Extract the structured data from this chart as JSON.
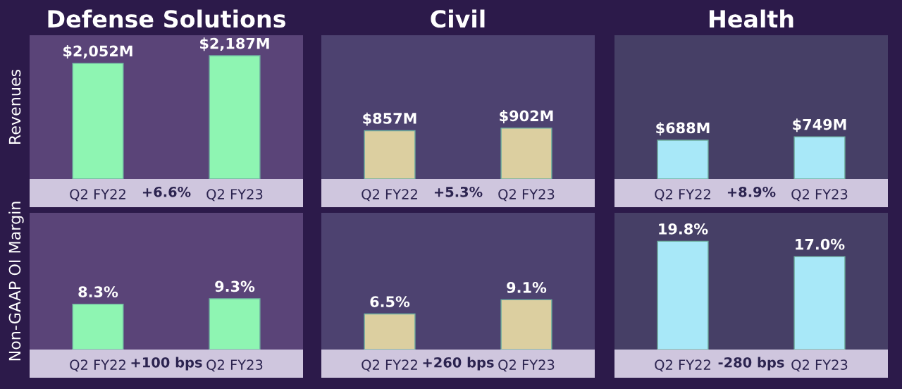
{
  "chart_data": [
    {
      "type": "bar",
      "title": "Defense Solutions",
      "ylabel": "Revenues",
      "categories": [
        "Q2 FY22",
        "Q2 FY23"
      ],
      "values": [
        2052,
        2187
      ],
      "value_labels": [
        "$2,052M",
        "$2,187M"
      ],
      "color": "#8ef5b2",
      "ylim": [
        0,
        2550
      ],
      "tick_labels": "x",
      "annotations": [
        "+6.6%"
      ]
    },
    {
      "type": "bar",
      "title": "Civil",
      "categories": [
        "Q2 FY22",
        "Q2 FY23"
      ],
      "values": [
        857,
        902
      ],
      "value_labels": [
        "$857M",
        "$902M"
      ],
      "color": "#dccfa0",
      "ylim": [
        0,
        2550
      ],
      "tick_labels": "x",
      "annotations": [
        "+5.3%"
      ]
    },
    {
      "type": "bar",
      "title": "Health",
      "categories": [
        "Q2 FY22",
        "Q2 FY23"
      ],
      "values": [
        688,
        749
      ],
      "value_labels": [
        "$688M",
        "$749M"
      ],
      "color": "#a8e8f8",
      "ylim": [
        0,
        2550
      ],
      "tick_labels": "x",
      "annotations": [
        "+8.9%"
      ]
    },
    {
      "type": "bar",
      "ylabel": "Non-GAAP OI Margin",
      "categories": [
        "Q2 FY22",
        "Q2 FY23"
      ],
      "values": [
        8.3,
        9.3
      ],
      "value_labels": [
        "8.3%",
        "9.3%"
      ],
      "color": "#8ef5b2",
      "ylim": [
        0,
        25
      ],
      "tick_labels": "x",
      "annotations": [
        "+100 bps"
      ]
    },
    {
      "type": "bar",
      "categories": [
        "Q2 FY22",
        "Q2 FY23"
      ],
      "values": [
        6.5,
        9.1
      ],
      "value_labels": [
        "6.5%",
        "9.1%"
      ],
      "color": "#dccfa0",
      "ylim": [
        0,
        25
      ],
      "tick_labels": "x",
      "annotations": [
        "+260 bps"
      ]
    },
    {
      "type": "bar",
      "categories": [
        "Q2 FY22",
        "Q2 FY23"
      ],
      "values": [
        19.8,
        17.0
      ],
      "value_labels": [
        "19.8%",
        "17.0%"
      ],
      "color": "#a8e8f8",
      "ylim": [
        0,
        25
      ],
      "tick_labels": "x",
      "annotations": [
        "-280 bps"
      ]
    }
  ]
}
